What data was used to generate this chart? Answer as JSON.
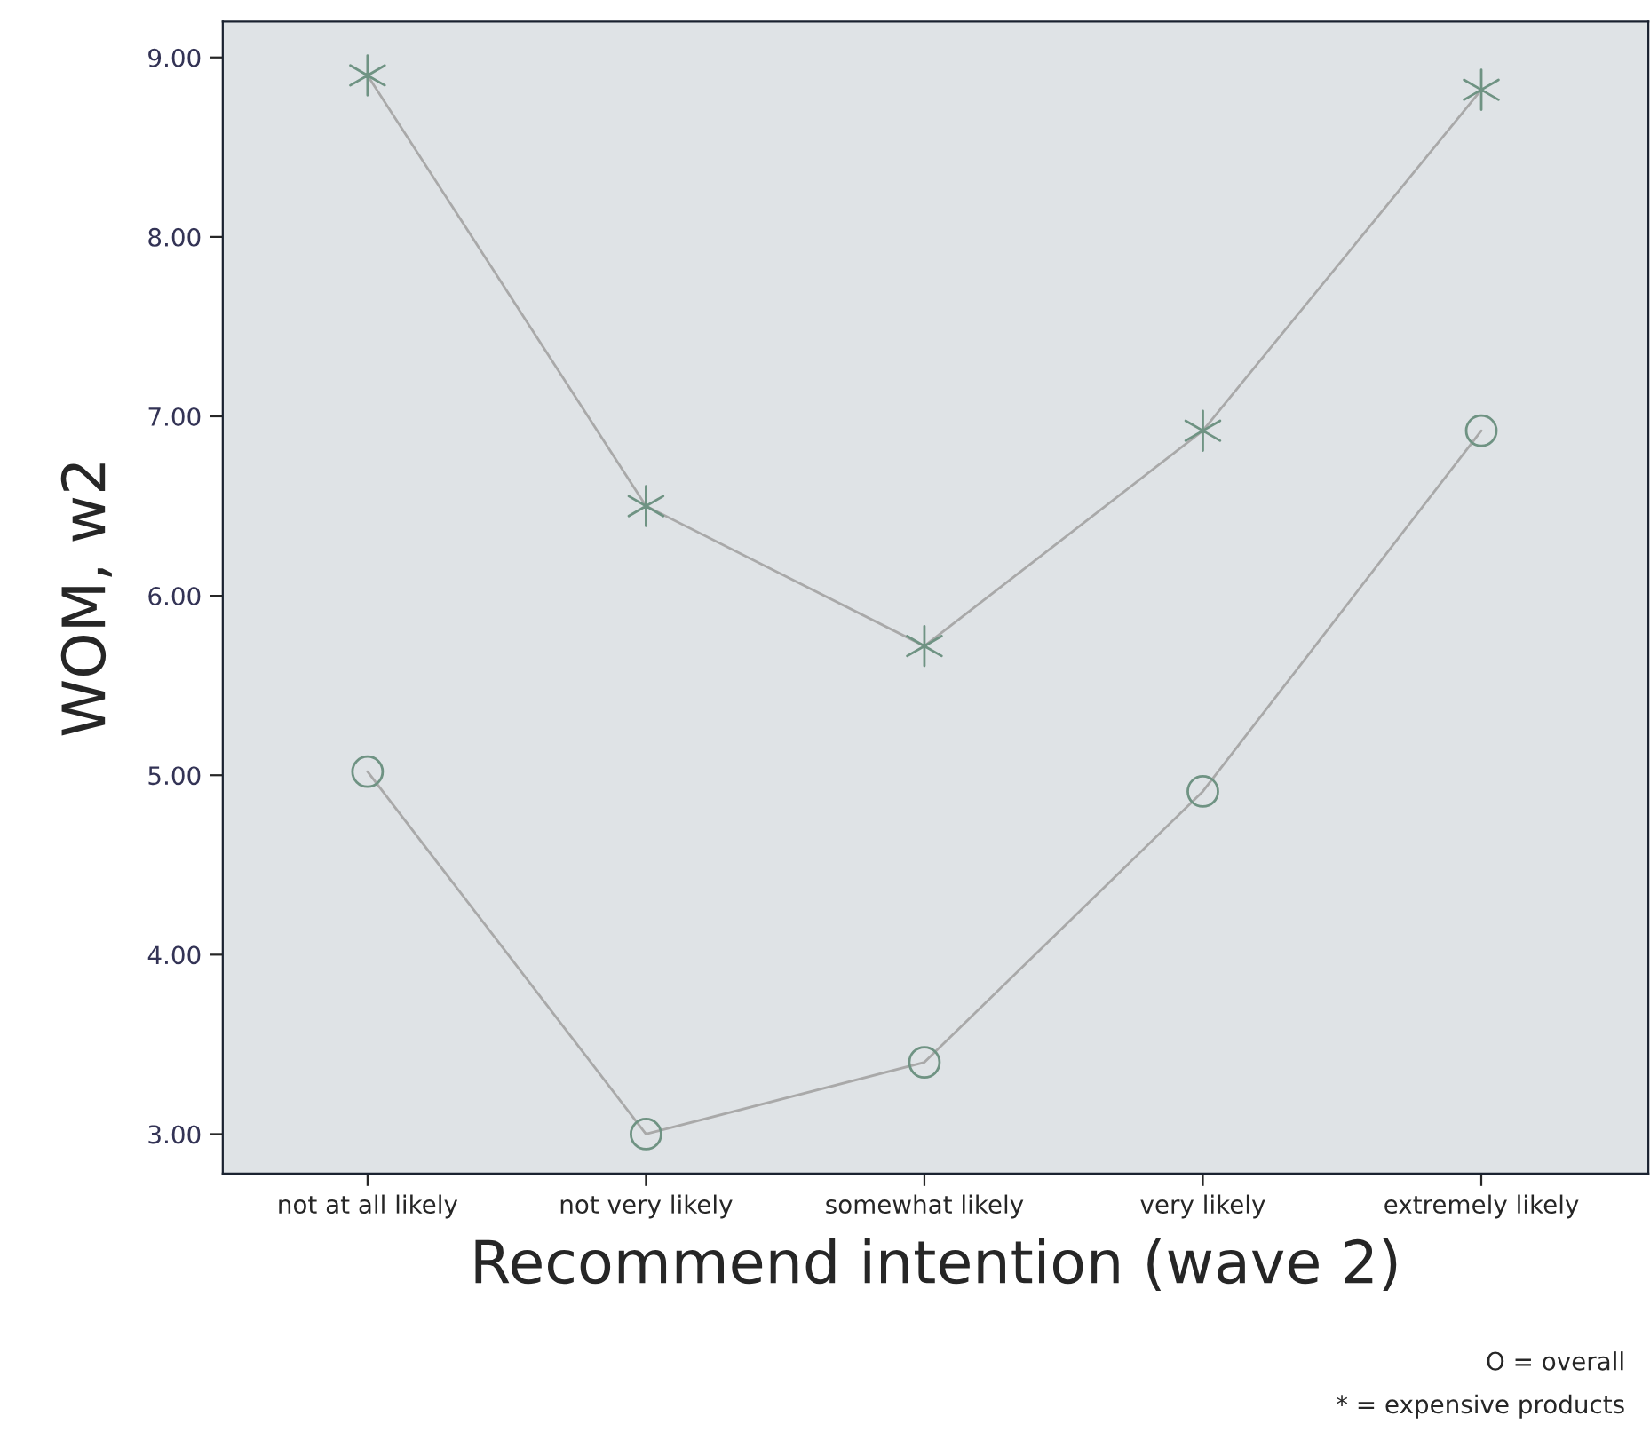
{
  "chart_data": {
    "type": "line",
    "xlabel": "Recommend intention (wave 2)",
    "ylabel": "WOM, w2",
    "categories": [
      "not at all likely",
      "not very likely",
      "somewhat likely",
      "very likely",
      "extremely likely"
    ],
    "series": [
      {
        "color": "#6f9383",
        "marker": "cross",
        "values": [
          8.9,
          6.5,
          5.72,
          6.92,
          8.82
        ]
      },
      {
        "color": "#6f9383",
        "marker": "circle",
        "values": [
          5.02,
          3.0,
          3.4,
          4.91,
          6.92
        ]
      }
    ],
    "ylim": [
      2.78,
      9.2
    ],
    "yticks": [
      {
        "value": 3,
        "label": "3.00"
      },
      {
        "value": 4,
        "label": "4.00"
      },
      {
        "value": 5,
        "label": "5.00"
      },
      {
        "value": 6,
        "label": "6.00"
      },
      {
        "value": 7,
        "label": "7.00"
      },
      {
        "value": 8,
        "label": "8.00"
      },
      {
        "value": 9,
        "label": "9.00"
      }
    ],
    "grid": false,
    "legend": false,
    "line_style": "solid",
    "annotations": [
      "O = overall",
      "* = expensive products"
    ]
  }
}
